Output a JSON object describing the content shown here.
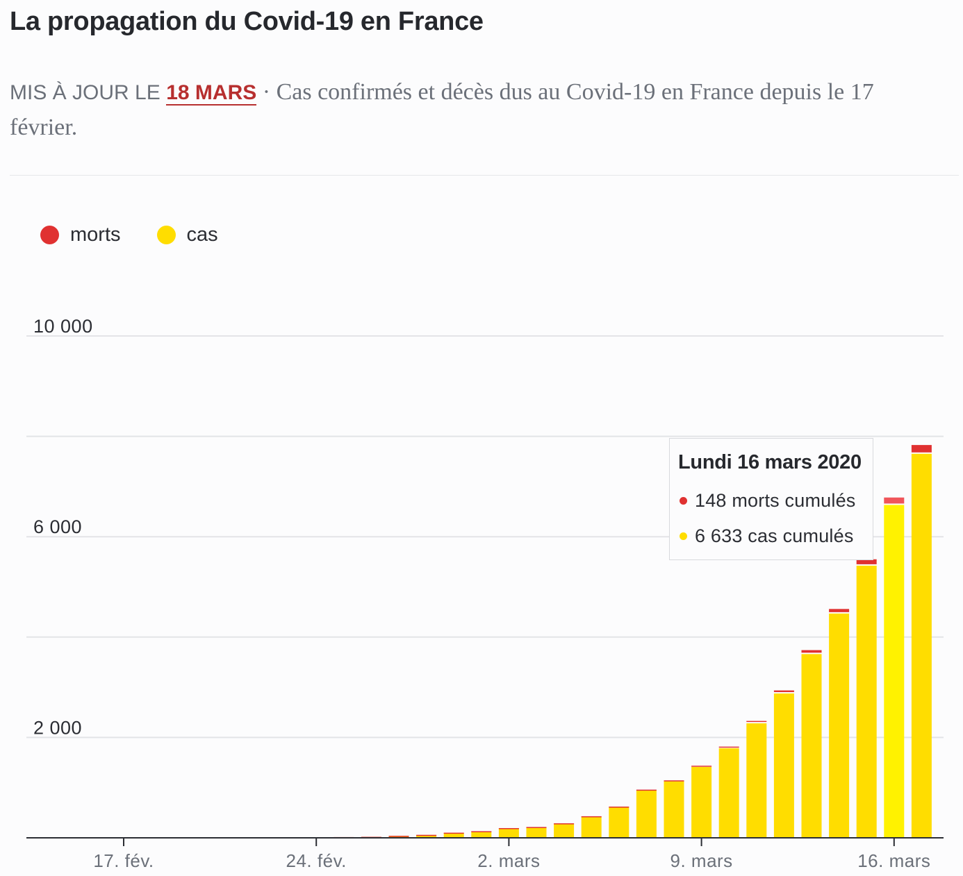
{
  "header": {
    "title": "La propagation du Covid-19 en France",
    "updated_prefix": "MIS À JOUR LE",
    "updated_date": "18 MARS",
    "description": "· Cas confirmés et décès dus au Covid-19 en France depuis le 17 février."
  },
  "legend": [
    {
      "label": "morts",
      "color": "#e03131"
    },
    {
      "label": "cas",
      "color": "#ffdd00"
    }
  ],
  "tooltip": {
    "title": "Lundi 16 mars 2020",
    "rows": [
      {
        "text": "148 morts cumulés",
        "color": "#e03131"
      },
      {
        "text": "6 633 cas cumulés",
        "color": "#ffdd00"
      }
    ]
  },
  "colors": {
    "cases": "#ffdd00",
    "cases_highlight": "#fff200",
    "deaths": "#e03131",
    "deaths_highlight": "#f0555a"
  },
  "chart_data": {
    "type": "bar",
    "stacked": true,
    "ylim": [
      0,
      10000
    ],
    "y_ticks": [
      {
        "value": 10000,
        "label": "10 000"
      },
      {
        "value": 8000,
        "label": ""
      },
      {
        "value": 6000,
        "label": "6 000"
      },
      {
        "value": 4000,
        "label": ""
      },
      {
        "value": 2000,
        "label": "2 000"
      },
      {
        "value": 0,
        "label": ""
      }
    ],
    "x_ticks": [
      {
        "date": "2020-02-17",
        "label": "17. fév."
      },
      {
        "date": "2020-02-24",
        "label": "24. fév."
      },
      {
        "date": "2020-03-02",
        "label": "2. mars"
      },
      {
        "date": "2020-03-09",
        "label": "9. mars"
      },
      {
        "date": "2020-03-16",
        "label": "16. mars"
      }
    ],
    "highlighted_date": "2020-03-16",
    "x": [
      "2020-02-17",
      "2020-02-18",
      "2020-02-19",
      "2020-02-20",
      "2020-02-21",
      "2020-02-22",
      "2020-02-23",
      "2020-02-24",
      "2020-02-25",
      "2020-02-26",
      "2020-02-27",
      "2020-02-28",
      "2020-02-29",
      "2020-03-01",
      "2020-03-02",
      "2020-03-03",
      "2020-03-04",
      "2020-03-05",
      "2020-03-06",
      "2020-03-07",
      "2020-03-08",
      "2020-03-09",
      "2020-03-10",
      "2020-03-11",
      "2020-03-12",
      "2020-03-13",
      "2020-03-14",
      "2020-03-15",
      "2020-03-16",
      "2020-03-17"
    ],
    "series": [
      {
        "name": "cas",
        "values": [
          12,
          12,
          12,
          12,
          12,
          12,
          12,
          12,
          14,
          18,
          38,
          57,
          100,
          130,
          191,
          212,
          285,
          423,
          613,
          949,
          1126,
          1412,
          1784,
          2281,
          2876,
          3661,
          4469,
          5423,
          6633,
          7652
        ]
      },
      {
        "name": "morts",
        "values": [
          0,
          0,
          0,
          0,
          0,
          1,
          1,
          1,
          1,
          2,
          2,
          2,
          2,
          2,
          3,
          4,
          4,
          7,
          9,
          11,
          19,
          25,
          33,
          48,
          61,
          79,
          91,
          127,
          148,
          175
        ]
      }
    ]
  }
}
